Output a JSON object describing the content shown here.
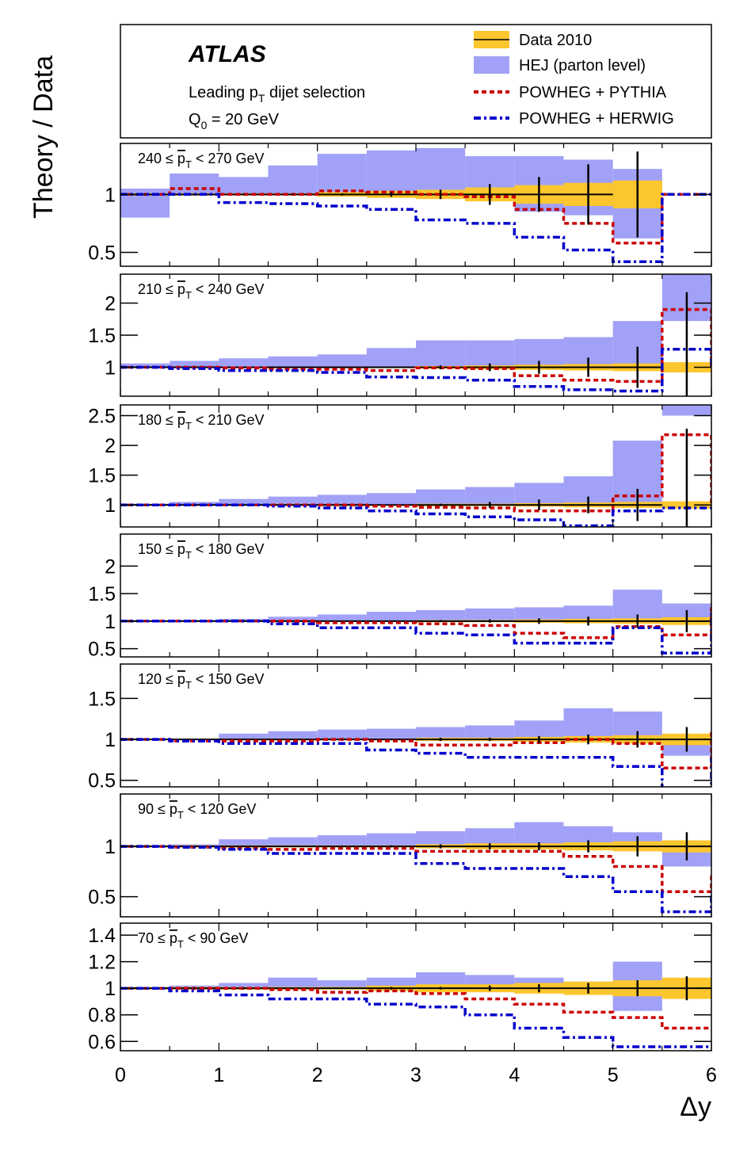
{
  "chart_data": {
    "type": "step-ratio-panels",
    "ylabel": "Theory / Data",
    "xlabel": "Δy",
    "xlim": [
      0,
      6
    ],
    "x_ticks": [
      0,
      1,
      2,
      3,
      4,
      5,
      6
    ],
    "x_tick_labels": [
      "0",
      "1",
      "2",
      "3",
      "4",
      "5",
      "6"
    ],
    "bin_edges": [
      0,
      0.5,
      1,
      1.5,
      2,
      2.5,
      3,
      3.5,
      4,
      4.5,
      5,
      5.5,
      6
    ],
    "legend": {
      "atlas": "ATLAS",
      "selection": "Leading p",
      "selection_sub": "T",
      "selection_rest": " dijet selection",
      "q0": "Q",
      "q0_sub": "0",
      "q0_rest": " = 20 GeV",
      "entries": [
        {
          "label": "Data 2010",
          "style": "data"
        },
        {
          "label": "HEJ (parton level)",
          "style": "hej"
        },
        {
          "label": "POWHEG + PYTHIA",
          "style": "pythia"
        },
        {
          "label": "POWHEG + HERWIG",
          "style": "herwig"
        }
      ]
    },
    "colors": {
      "data_band": "#fcc62e",
      "hej_band": "#a1a1f7",
      "pythia": "#cc0000",
      "herwig": "#0000cc",
      "data_line": "#000000"
    },
    "panels": [
      {
        "range_pre": "240  ≤  ",
        "range_var": "p",
        "range_sub": "T",
        "range_post": " < 270 GeV",
        "ylim": [
          0.38,
          1.44
        ],
        "y_ticks": [
          0.5,
          1
        ],
        "y_tick_labels": [
          "0.5",
          "1"
        ],
        "hej_low": [
          0.8,
          1.0,
          1.0,
          1.0,
          1.0,
          1.0,
          1.0,
          0.95,
          0.85,
          0.82,
          0.62
        ],
        "hej_high": [
          1.05,
          1.18,
          1.15,
          1.25,
          1.35,
          1.38,
          1.4,
          1.33,
          1.33,
          1.3,
          1.22
        ],
        "data_band": [
          0.01,
          0.01,
          0.01,
          0.01,
          0.02,
          0.03,
          0.04,
          0.06,
          0.08,
          0.1,
          0.12
        ],
        "data_err": [
          0.0,
          0.0,
          0.0,
          0.0,
          0.01,
          0.02,
          0.04,
          0.09,
          0.15,
          0.26,
          0.37
        ],
        "data_nbins": 10,
        "pythia": [
          1.0,
          1.05,
          1.0,
          1.0,
          1.03,
          1.02,
          1.0,
          0.98,
          0.87,
          0.75,
          0.58,
          1.0
        ],
        "herwig": [
          1.0,
          1.0,
          0.93,
          0.92,
          0.9,
          0.87,
          0.78,
          0.75,
          0.63,
          0.52,
          0.42,
          1.0
        ]
      },
      {
        "range_pre": "210  ≤  ",
        "range_var": "p",
        "range_sub": "T",
        "range_post": " < 240 GeV",
        "ylim": [
          0.55,
          2.45
        ],
        "y_ticks": [
          1,
          1.5,
          2
        ],
        "y_tick_labels": [
          "1",
          "1.5",
          "2"
        ],
        "hej_low": [
          1.0,
          1.0,
          1.0,
          1.0,
          1.0,
          1.0,
          1.0,
          1.0,
          1.0,
          1.0,
          1.0,
          1.72
        ],
        "hej_high": [
          1.06,
          1.1,
          1.14,
          1.17,
          1.2,
          1.3,
          1.42,
          1.42,
          1.44,
          1.47,
          1.72,
          2.45
        ],
        "data_band": [
          0.01,
          0.01,
          0.01,
          0.01,
          0.01,
          0.01,
          0.02,
          0.03,
          0.04,
          0.05,
          0.06,
          0.08
        ],
        "data_err": [
          0.0,
          0.0,
          0.0,
          0.0,
          0.0,
          0.01,
          0.03,
          0.06,
          0.1,
          0.15,
          0.32,
          1.17
        ],
        "data_nbins": 11,
        "pythia": [
          1.0,
          1.0,
          0.99,
          0.97,
          0.97,
          0.95,
          0.99,
          0.98,
          0.87,
          0.8,
          0.78,
          1.9,
          1.0
        ],
        "herwig": [
          1.0,
          0.98,
          0.95,
          0.95,
          0.92,
          0.85,
          0.84,
          0.8,
          0.7,
          0.65,
          0.63,
          1.28,
          1.0
        ]
      },
      {
        "range_pre": "180  ≤  ",
        "range_var": "p",
        "range_sub": "T",
        "range_post": " < 210 GeV",
        "ylim": [
          0.63,
          2.68
        ],
        "y_ticks": [
          1,
          1.5,
          2,
          2.5
        ],
        "y_tick_labels": [
          "1",
          "1.5",
          "2",
          "2.5"
        ],
        "hej_low": [
          1.0,
          1.0,
          1.0,
          1.0,
          1.0,
          1.0,
          1.0,
          1.0,
          1.0,
          1.0,
          1.0,
          2.5
        ],
        "hej_high": [
          1.02,
          1.05,
          1.1,
          1.14,
          1.17,
          1.2,
          1.26,
          1.3,
          1.37,
          1.48,
          2.08,
          2.68
        ],
        "data_band": [
          0.01,
          0.01,
          0.01,
          0.01,
          0.01,
          0.01,
          0.02,
          0.02,
          0.03,
          0.04,
          0.05,
          0.06
        ],
        "data_err": [
          0.0,
          0.0,
          0.0,
          0.0,
          0.0,
          0.01,
          0.02,
          0.05,
          0.09,
          0.14,
          0.27,
          1.28
        ],
        "data_nbins": 11,
        "pythia": [
          1.0,
          1.0,
          1.0,
          1.0,
          1.0,
          0.98,
          0.96,
          0.95,
          0.9,
          0.9,
          1.15,
          2.18,
          1.0
        ],
        "herwig": [
          1.0,
          1.0,
          1.0,
          0.98,
          0.95,
          0.9,
          0.85,
          0.8,
          0.75,
          0.65,
          0.9,
          0.95,
          1.0
        ]
      },
      {
        "range_pre": "150  ≤  ",
        "range_var": "p",
        "range_sub": "T",
        "range_post": " < 180 GeV",
        "ylim": [
          0.35,
          2.58
        ],
        "y_ticks": [
          0.5,
          1,
          1.5,
          2
        ],
        "y_tick_labels": [
          "0.5",
          "1",
          "1.5",
          "2"
        ],
        "hej_low": [
          1.0,
          1.0,
          1.0,
          1.0,
          1.0,
          1.0,
          1.0,
          1.0,
          1.0,
          1.0,
          1.0,
          1.0,
          1.65
        ],
        "hej_high": [
          1.0,
          1.02,
          1.04,
          1.08,
          1.12,
          1.17,
          1.2,
          1.23,
          1.25,
          1.28,
          1.57,
          1.32,
          2.58
        ],
        "data_band": [
          0.01,
          0.01,
          0.01,
          0.01,
          0.01,
          0.01,
          0.02,
          0.02,
          0.03,
          0.04,
          0.05,
          0.07,
          0.09
        ],
        "data_err": [
          0.0,
          0.0,
          0.0,
          0.0,
          0.0,
          0.01,
          0.02,
          0.03,
          0.05,
          0.08,
          0.12,
          0.2,
          1.0
        ],
        "data_nbins": 12,
        "pythia": [
          1.0,
          1.0,
          1.0,
          1.0,
          0.97,
          0.97,
          0.95,
          0.92,
          0.78,
          0.7,
          0.9,
          0.75,
          1.32
        ],
        "herwig": [
          1.0,
          1.0,
          1.0,
          0.95,
          0.88,
          0.88,
          0.78,
          0.75,
          0.6,
          0.6,
          0.88,
          0.42,
          1.15
        ]
      },
      {
        "range_pre": "120  ≤  ",
        "range_var": "p",
        "range_sub": "T",
        "range_post": " < 150 GeV",
        "ylim": [
          0.42,
          1.92
        ],
        "y_ticks": [
          0.5,
          1,
          1.5
        ],
        "y_tick_labels": [
          "0.5",
          "1",
          "1.5"
        ],
        "hej_low": [
          1.0,
          1.0,
          1.0,
          1.0,
          1.0,
          1.0,
          1.0,
          1.0,
          1.0,
          1.0,
          1.0,
          0.8,
          1.5
        ],
        "hej_high": [
          1.0,
          1.0,
          1.07,
          1.1,
          1.12,
          1.13,
          1.15,
          1.17,
          1.23,
          1.38,
          1.34,
          1.04,
          1.88
        ],
        "data_band": [
          0.01,
          0.01,
          0.01,
          0.01,
          0.01,
          0.01,
          0.02,
          0.02,
          0.03,
          0.04,
          0.05,
          0.07,
          0.1
        ],
        "data_err": [
          0.0,
          0.0,
          0.0,
          0.0,
          0.0,
          0.01,
          0.02,
          0.02,
          0.04,
          0.06,
          0.1,
          0.15,
          0.4
        ],
        "data_nbins": 12,
        "pythia": [
          1.0,
          0.98,
          0.98,
          0.98,
          1.0,
          0.98,
          0.93,
          0.93,
          0.96,
          1.0,
          0.95,
          0.65,
          1.12
        ],
        "herwig": [
          1.0,
          0.98,
          0.95,
          0.95,
          0.95,
          0.87,
          0.83,
          0.78,
          0.78,
          0.78,
          0.67,
          0.4,
          0.78
        ]
      },
      {
        "range_pre": "90  ≤  ",
        "range_var": "p",
        "range_sub": "T",
        "range_post": " < 120 GeV",
        "ylim": [
          0.3,
          1.52
        ],
        "y_ticks": [
          0.5,
          1
        ],
        "y_tick_labels": [
          "0.5",
          "1"
        ],
        "hej_low": [
          1.0,
          1.0,
          1.0,
          1.0,
          1.0,
          1.0,
          1.0,
          1.0,
          1.0,
          1.0,
          1.0,
          0.8,
          0.85
        ],
        "hej_high": [
          1.0,
          1.02,
          1.07,
          1.09,
          1.11,
          1.13,
          1.15,
          1.18,
          1.24,
          1.2,
          1.14,
          1.0,
          1.28
        ],
        "data_band": [
          0.01,
          0.01,
          0.01,
          0.01,
          0.01,
          0.01,
          0.02,
          0.03,
          0.03,
          0.04,
          0.05,
          0.06,
          0.07
        ],
        "data_err": [
          0.0,
          0.0,
          0.0,
          0.0,
          0.0,
          0.01,
          0.02,
          0.03,
          0.04,
          0.06,
          0.1,
          0.14,
          0.22
        ],
        "data_nbins": 12,
        "pythia": [
          1.0,
          0.99,
          0.98,
          0.97,
          0.98,
          0.98,
          0.95,
          0.95,
          0.95,
          0.9,
          0.8,
          0.55,
          0.72
        ],
        "herwig": [
          1.0,
          0.99,
          0.97,
          0.93,
          0.93,
          0.93,
          0.83,
          0.78,
          0.78,
          0.7,
          0.55,
          0.35,
          0.55
        ]
      },
      {
        "range_pre": "70  ≤  ",
        "range_var": "p",
        "range_sub": "T",
        "range_post": " < 90 GeV",
        "ylim": [
          0.53,
          1.49
        ],
        "y_ticks": [
          0.6,
          0.8,
          1,
          1.2,
          1.4
        ],
        "y_tick_labels": [
          "0.6",
          "0.8",
          "1",
          "1.2",
          "1.4"
        ],
        "hej_low": [
          1.0,
          1.0,
          1.0,
          1.0,
          1.0,
          1.0,
          1.0,
          1.0,
          1.0,
          1.0,
          0.83,
          0.97,
          0.83
        ],
        "hej_high": [
          1.0,
          1.02,
          1.04,
          1.08,
          1.06,
          1.08,
          1.12,
          1.1,
          1.08,
          1.05,
          1.2,
          1.0,
          1.1
        ],
        "data_band": [
          0.01,
          0.01,
          0.01,
          0.01,
          0.01,
          0.02,
          0.03,
          0.03,
          0.04,
          0.05,
          0.06,
          0.08,
          0.1
        ],
        "data_err": [
          0.0,
          0.0,
          0.0,
          0.0,
          0.0,
          0.01,
          0.01,
          0.02,
          0.03,
          0.04,
          0.06,
          0.09,
          0.13
        ],
        "data_nbins": 12,
        "pythia": [
          1.0,
          1.0,
          1.0,
          0.99,
          0.97,
          0.98,
          0.96,
          0.92,
          0.88,
          0.82,
          0.78,
          0.7,
          0.7
        ],
        "herwig": [
          1.0,
          0.98,
          0.95,
          0.92,
          0.92,
          0.88,
          0.86,
          0.8,
          0.7,
          0.63,
          0.56,
          0.56,
          0.56
        ]
      }
    ]
  }
}
